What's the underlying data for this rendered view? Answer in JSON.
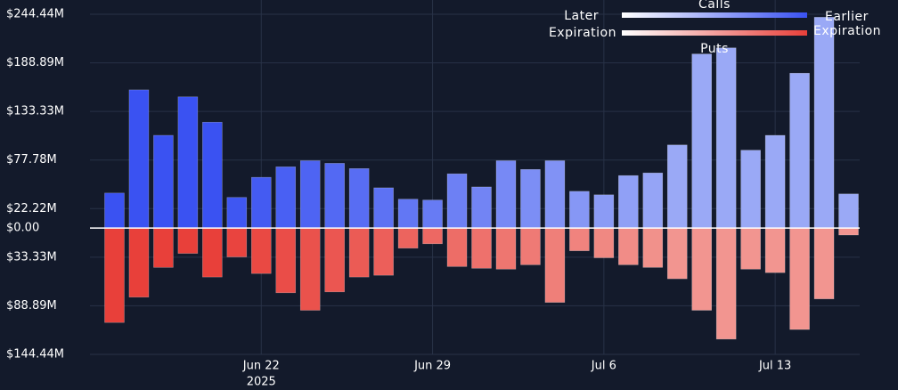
{
  "chart_data": {
    "type": "diverging-bar",
    "x": [
      "2025-06-16",
      "2025-06-17",
      "2025-06-18",
      "2025-06-19",
      "2025-06-20",
      "2025-06-21",
      "2025-06-22",
      "2025-06-23",
      "2025-06-24",
      "2025-06-25",
      "2025-06-26",
      "2025-06-27",
      "2025-06-28",
      "2025-06-29",
      "2025-06-30",
      "2025-07-01",
      "2025-07-02",
      "2025-07-03",
      "2025-07-04",
      "2025-07-05",
      "2025-07-06",
      "2025-07-07",
      "2025-07-08",
      "2025-07-09",
      "2025-07-10",
      "2025-07-11",
      "2025-07-12",
      "2025-07-13",
      "2025-07-14",
      "2025-07-15",
      "2025-07-16"
    ],
    "series": [
      {
        "name": "Calls",
        "color": "#3a52f2",
        "light_color": "#9aa9f6",
        "values": [
          40000000,
          158000000,
          106000000,
          150000000,
          121000000,
          35000000,
          58000000,
          70000000,
          77000000,
          74000000,
          68000000,
          46000000,
          33000000,
          32000000,
          62000000,
          47000000,
          77000000,
          67000000,
          77000000,
          42000000,
          38000000,
          60000000,
          63000000,
          95000000,
          199000000,
          206000000,
          89000000,
          106000000,
          177000000,
          241000000,
          39000000
        ]
      },
      {
        "name": "Puts",
        "color": "#e8403a",
        "light_color": "#f29590",
        "values": [
          -108000000,
          -79000000,
          -45000000,
          -29000000,
          -56000000,
          -33000000,
          -52000000,
          -74000000,
          -94000000,
          -73000000,
          -56000000,
          -54000000,
          -23000000,
          -18000000,
          -44000000,
          -46000000,
          -47000000,
          -42000000,
          -85000000,
          -26000000,
          -34000000,
          -42000000,
          -45000000,
          -58000000,
          -94000000,
          -127000000,
          -47000000,
          -51000000,
          -116000000,
          -81000000,
          -8000000
        ]
      }
    ],
    "ylim": [
      -144440000,
      244440000
    ],
    "yticks": [
      {
        "value": 244440000,
        "label": "$244.44M"
      },
      {
        "value": 188890000,
        "label": "$188.89M"
      },
      {
        "value": 133330000,
        "label": "$133.33M"
      },
      {
        "value": 77780000,
        "label": "$77.78M"
      },
      {
        "value": 22220000,
        "label": "$22.22M"
      },
      {
        "value": 0,
        "label": "$0.00"
      },
      {
        "value": -33330000,
        "label": "$33.33M"
      },
      {
        "value": -88890000,
        "label": "$88.89M"
      },
      {
        "value": -144440000,
        "label": "$144.44M"
      }
    ],
    "xlim": [
      "2025-06-15",
      "2025-07-17"
    ],
    "xticks": [
      {
        "value": "2025-06-22",
        "label": "Jun 22"
      },
      {
        "value": "2025-06-29",
        "label": "Jun 29"
      },
      {
        "value": "2025-07-06",
        "label": "Jul 6"
      },
      {
        "value": "2025-07-13",
        "label": "Jul 13"
      }
    ],
    "x_year_label": "2025",
    "grid": true,
    "legend": {
      "left_label": "Later",
      "right_label": "Earlier",
      "sub_label": "Expiration"
    }
  }
}
